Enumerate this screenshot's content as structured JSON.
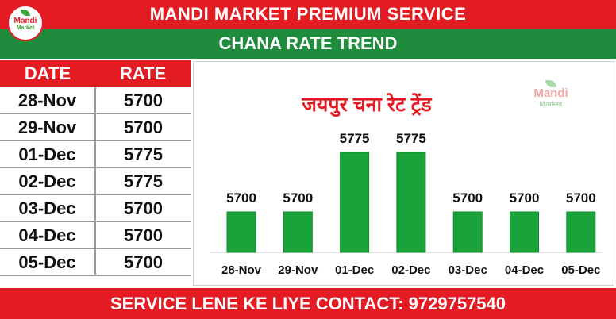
{
  "header": {
    "title": "MANDI MARKET PREMIUM SERVICE",
    "subtitle": "CHANA RATE TREND"
  },
  "logo": {
    "line1": "Mandi",
    "line2": "Market"
  },
  "table": {
    "headers": [
      "DATE",
      "RATE"
    ],
    "rows": [
      {
        "date": "28-Nov",
        "rate": "5700"
      },
      {
        "date": "29-Nov",
        "rate": "5700"
      },
      {
        "date": "01-Dec",
        "rate": "5775"
      },
      {
        "date": "02-Dec",
        "rate": "5775"
      },
      {
        "date": "03-Dec",
        "rate": "5700"
      },
      {
        "date": "04-Dec",
        "rate": "5700"
      },
      {
        "date": "05-Dec",
        "rate": "5700"
      }
    ]
  },
  "colors": {
    "red": "#e31b23",
    "green": "#1e8c3c",
    "bar": "#1aa33a"
  },
  "chart_data": {
    "type": "bar",
    "title": "जयपुर चना रेट ट्रेंड",
    "categories": [
      "28-Nov",
      "29-Nov",
      "01-Dec",
      "02-Dec",
      "03-Dec",
      "04-Dec",
      "05-Dec"
    ],
    "values": [
      5700,
      5700,
      5775,
      5775,
      5700,
      5700,
      5700
    ],
    "xlabel": "",
    "ylabel": "",
    "data_labels": true,
    "grid": false
  },
  "footer": {
    "text": "SERVICE LENE KE LIYE CONTACT: 9729757540"
  }
}
